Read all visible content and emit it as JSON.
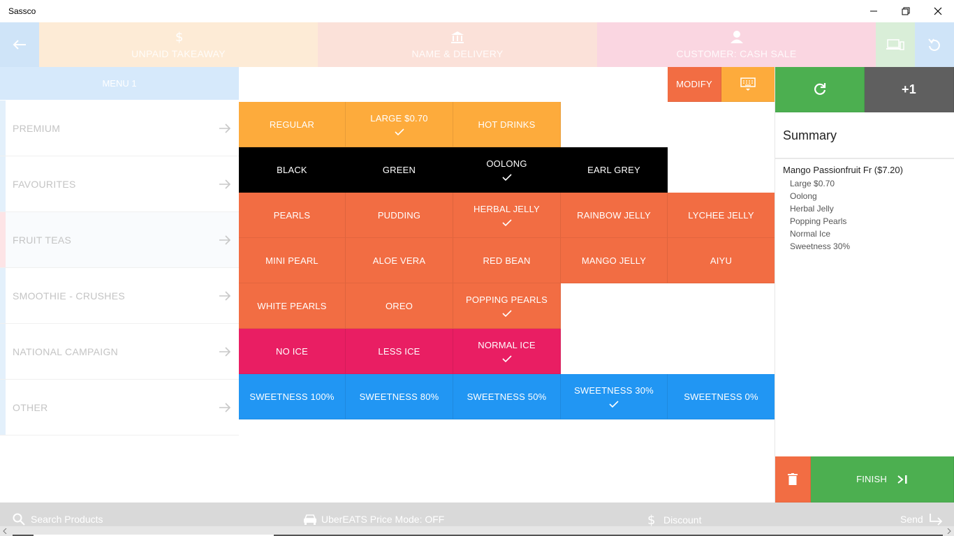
{
  "window": {
    "title": "Sassco"
  },
  "header": {
    "order_type": "UNPAID TAKEAWAY",
    "name_delivery": "NAME & DELIVERY",
    "customer": "CUSTOMER: CASH SALE"
  },
  "menu": {
    "header": "MENU 1",
    "categories": [
      {
        "label": "PREMIUM",
        "bar_color": "#e3f0fb"
      },
      {
        "label": "FAVOURITES",
        "bar_color": "#e3f0fb"
      },
      {
        "label": "FRUIT TEAS",
        "bar_color": "#fde4e6"
      },
      {
        "label": "SMOOTHIE - CRUSHES",
        "bar_color": "#e3f0fb"
      },
      {
        "label": "NATIONAL CAMPAIGN",
        "bar_color": "#e3f0fb"
      },
      {
        "label": "OTHER",
        "bar_color": "#e3f0fb"
      }
    ]
  },
  "toolbar": {
    "modify": "MODIFY"
  },
  "tiles": {
    "size": [
      "REGULAR",
      "LARGE $0.70",
      "HOT DRINKS"
    ],
    "tea": [
      "BLACK",
      "GREEN",
      "OOLONG",
      "EARL GREY"
    ],
    "toppings": [
      "PEARLS",
      "PUDDING",
      "HERBAL JELLY",
      "RAINBOW JELLY",
      "LYCHEE JELLY",
      "MINI PEARL",
      "ALOE VERA",
      "RED BEAN",
      "MANGO JELLY",
      "AIYU",
      "WHITE PEARLS",
      "OREO",
      "POPPING PEARLS"
    ],
    "ice": [
      "NO ICE",
      "LESS ICE",
      "NORMAL ICE"
    ],
    "sweetness": [
      "SWEETNESS 100%",
      "SWEETNESS 80%",
      "SWEETNESS 50%",
      "SWEETNESS 30%",
      "SWEETNESS 0%"
    ]
  },
  "actions": {
    "plus_one": "+1",
    "finish": "FINISH"
  },
  "summary": {
    "title": "Summary",
    "item": "Mango Passionfruit Fr ($7.20)",
    "modifiers": [
      "Large $0.70",
      "Oolong",
      "Herbal Jelly",
      "Popping Pearls",
      "Normal Ice",
      "Sweetness 30%"
    ]
  },
  "bottom": {
    "search": "Search Products",
    "uber": "UberEATS Price Mode: OFF",
    "discount": "Discount",
    "send": "Send"
  },
  "colors": {
    "size": "#fdab3c",
    "tea": "#000000",
    "toppings": "#f26d43",
    "ice": "#e91e63",
    "sweetness": "#2196f3",
    "refresh": "#4caf50",
    "plus_one": "#5f5f5f",
    "finish": "#4caf50",
    "delete": "#f26d43"
  }
}
